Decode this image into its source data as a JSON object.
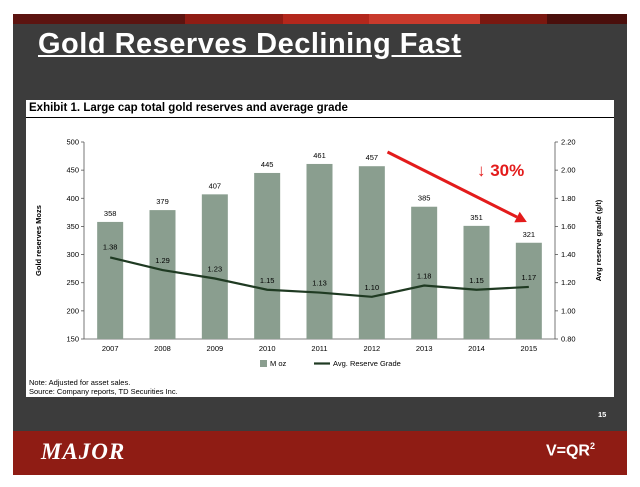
{
  "slide": {
    "title": "Gold Reserves Declining Fast",
    "exhibit_title": "Exhibit 1. Large cap total gold reserves and average grade",
    "note": "Note: Adjusted for asset sales.",
    "source": "Source: Company reports, TD Securities Inc.",
    "slide_number": "15",
    "footer_logo_left": "MAJOR",
    "footer_logo_right_text": "V=QR",
    "footer_logo_right_sup": "2",
    "colors": {
      "background": "#3c3c3c",
      "footer": "#8f1c14",
      "bar": "#8a9e8f",
      "line": "#1f3a22",
      "arrow": "#e31b1b"
    }
  },
  "chart_data": {
    "type": "bar",
    "categories": [
      "2007",
      "2008",
      "2009",
      "2010",
      "2011",
      "2012",
      "2013",
      "2014",
      "2015"
    ],
    "ylabel": "Gold reserves Mozs",
    "y2label": "Avg reserve grade (g/t)",
    "ylim": [
      150,
      500
    ],
    "y2lim": [
      0.8,
      2.2
    ],
    "yticks": [
      "150",
      "200",
      "250",
      "300",
      "350",
      "400",
      "450",
      "500"
    ],
    "y2ticks": [
      "0.80",
      "1.00",
      "1.20",
      "1.40",
      "1.60",
      "1.80",
      "2.00",
      "2.20"
    ],
    "series": [
      {
        "name": "M oz",
        "type": "bar",
        "axis": "left",
        "values": [
          358,
          379,
          407,
          445,
          461,
          457,
          385,
          351,
          321
        ]
      },
      {
        "name": "Avg. Reserve Grade",
        "type": "line",
        "axis": "right",
        "values": [
          1.38,
          1.29,
          1.23,
          1.15,
          1.13,
          1.1,
          1.18,
          1.15,
          1.17
        ]
      }
    ],
    "bar_labels": [
      "358",
      "379",
      "407",
      "445",
      "461",
      "457",
      "385",
      "351",
      "321"
    ],
    "line_labels": [
      "1.38",
      "1.29",
      "1.23",
      "1.15",
      "1.13",
      "1.10",
      "1.18",
      "1.15",
      "1.17"
    ],
    "annotation": {
      "text": "↓ 30%",
      "from_category": "2011",
      "to_category": "2015"
    },
    "legend": "bottom",
    "grid": false
  }
}
